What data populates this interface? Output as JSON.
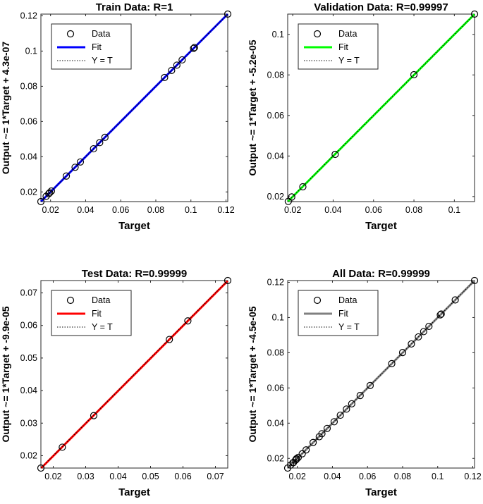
{
  "chart_data": [
    {
      "type": "scatter",
      "title": "Train Data: R=1",
      "xlabel": "Target",
      "ylabel": "Output ~= 1*Target + 4.3e-07",
      "xlim": [
        0.0145,
        0.121
      ],
      "ylim": [
        0.0145,
        0.121
      ],
      "xticks": [
        0.02,
        0.04,
        0.06,
        0.08,
        0.1,
        0.12
      ],
      "xtick_labels": [
        "0.02",
        "0.04",
        "0.06",
        "0.08",
        "0.1",
        "0.12"
      ],
      "yticks": [
        0.02,
        0.04,
        0.06,
        0.08,
        0.1,
        0.12
      ],
      "ytick_labels": [
        "0.02",
        "0.04",
        "0.06",
        "0.08",
        "0.1",
        "0.12"
      ],
      "fit_color": "#0000ff",
      "legend_position": "top-left",
      "legend": [
        "Data",
        "Fit",
        "Y = T"
      ],
      "fit": {
        "slope": 1,
        "intercept": 4.3e-07
      },
      "points": [
        [
          0.0145,
          0.0145
        ],
        [
          0.0175,
          0.0175
        ],
        [
          0.019,
          0.019
        ],
        [
          0.0195,
          0.0195
        ],
        [
          0.0205,
          0.0205
        ],
        [
          0.029,
          0.029
        ],
        [
          0.034,
          0.034
        ],
        [
          0.037,
          0.037
        ],
        [
          0.0445,
          0.0445
        ],
        [
          0.048,
          0.048
        ],
        [
          0.051,
          0.051
        ],
        [
          0.085,
          0.085
        ],
        [
          0.089,
          0.089
        ],
        [
          0.092,
          0.092
        ],
        [
          0.095,
          0.095
        ],
        [
          0.1015,
          0.1015
        ],
        [
          0.102,
          0.102
        ],
        [
          0.121,
          0.121
        ]
      ]
    },
    {
      "type": "scatter",
      "title": "Validation Data: R=0.99997",
      "xlabel": "Target",
      "ylabel": "Output ~= 1*Target + -5.2e-05",
      "xlim": [
        0.0175,
        0.11
      ],
      "ylim": [
        0.0175,
        0.11
      ],
      "xticks": [
        0.02,
        0.04,
        0.06,
        0.08,
        0.1
      ],
      "xtick_labels": [
        "0.02",
        "0.04",
        "0.06",
        "0.08",
        "0.1"
      ],
      "yticks": [
        0.02,
        0.04,
        0.06,
        0.08,
        0.1
      ],
      "ytick_labels": [
        "0.02",
        "0.04",
        "0.06",
        "0.08",
        "0.1"
      ],
      "fit_color": "#00ff00",
      "legend_position": "top-left",
      "legend": [
        "Data",
        "Fit",
        "Y = T"
      ],
      "fit": {
        "slope": 1,
        "intercept": -5.2e-05
      },
      "points": [
        [
          0.0178,
          0.0176
        ],
        [
          0.0195,
          0.0198
        ],
        [
          0.025,
          0.0248
        ],
        [
          0.041,
          0.0408
        ],
        [
          0.08,
          0.0801
        ],
        [
          0.11,
          0.11
        ]
      ]
    },
    {
      "type": "scatter",
      "title": "Test Data: R=0.99999",
      "xlabel": "Target",
      "ylabel": "Output ~= 1*Target + -9.9e-05",
      "xlim": [
        0.0162,
        0.0738
      ],
      "ylim": [
        0.0162,
        0.0738
      ],
      "xticks": [
        0.02,
        0.03,
        0.04,
        0.05,
        0.06,
        0.07
      ],
      "xtick_labels": [
        "0.02",
        "0.03",
        "0.04",
        "0.05",
        "0.06",
        "0.07"
      ],
      "yticks": [
        0.02,
        0.03,
        0.04,
        0.05,
        0.06,
        0.07
      ],
      "ytick_labels": [
        "0.02",
        "0.03",
        "0.04",
        "0.05",
        "0.06",
        "0.07"
      ],
      "fit_color": "#ff0000",
      "legend_position": "top-left",
      "legend": [
        "Data",
        "Fit",
        "Y = T"
      ],
      "fit": {
        "slope": 1,
        "intercept": -9.9e-05
      },
      "points": [
        [
          0.0162,
          0.0162
        ],
        [
          0.0228,
          0.0226
        ],
        [
          0.0325,
          0.0323
        ],
        [
          0.0558,
          0.0557
        ],
        [
          0.0615,
          0.0614
        ],
        [
          0.0738,
          0.0738
        ]
      ]
    },
    {
      "type": "scatter",
      "title": "All Data: R=0.99999",
      "xlabel": "Target",
      "ylabel": "Output ~= 1*Target + -4.5e-05",
      "xlim": [
        0.0145,
        0.121
      ],
      "ylim": [
        0.0145,
        0.121
      ],
      "xticks": [
        0.02,
        0.04,
        0.06,
        0.08,
        0.1,
        0.12
      ],
      "xtick_labels": [
        "0.02",
        "0.04",
        "0.06",
        "0.08",
        "0.1",
        "0.12"
      ],
      "yticks": [
        0.02,
        0.04,
        0.06,
        0.08,
        0.1,
        0.12
      ],
      "ytick_labels": [
        "0.02",
        "0.04",
        "0.06",
        "0.08",
        "0.1",
        "0.12"
      ],
      "fit_color": "#808080",
      "legend_position": "top-left",
      "legend": [
        "Data",
        "Fit",
        "Y = T"
      ],
      "fit": {
        "slope": 1,
        "intercept": -4.5e-05
      },
      "points": [
        [
          0.0145,
          0.0145
        ],
        [
          0.0162,
          0.0162
        ],
        [
          0.0175,
          0.0175
        ],
        [
          0.0178,
          0.0176
        ],
        [
          0.019,
          0.019
        ],
        [
          0.0195,
          0.0195
        ],
        [
          0.0195,
          0.0198
        ],
        [
          0.0205,
          0.0205
        ],
        [
          0.0228,
          0.0226
        ],
        [
          0.025,
          0.0248
        ],
        [
          0.029,
          0.029
        ],
        [
          0.0325,
          0.0323
        ],
        [
          0.034,
          0.034
        ],
        [
          0.037,
          0.037
        ],
        [
          0.041,
          0.0408
        ],
        [
          0.0445,
          0.0445
        ],
        [
          0.048,
          0.048
        ],
        [
          0.051,
          0.051
        ],
        [
          0.0558,
          0.0557
        ],
        [
          0.0615,
          0.0614
        ],
        [
          0.0738,
          0.0738
        ],
        [
          0.08,
          0.0801
        ],
        [
          0.085,
          0.085
        ],
        [
          0.089,
          0.089
        ],
        [
          0.092,
          0.092
        ],
        [
          0.095,
          0.095
        ],
        [
          0.1015,
          0.1015
        ],
        [
          0.102,
          0.102
        ],
        [
          0.11,
          0.11
        ],
        [
          0.121,
          0.121
        ]
      ]
    }
  ]
}
